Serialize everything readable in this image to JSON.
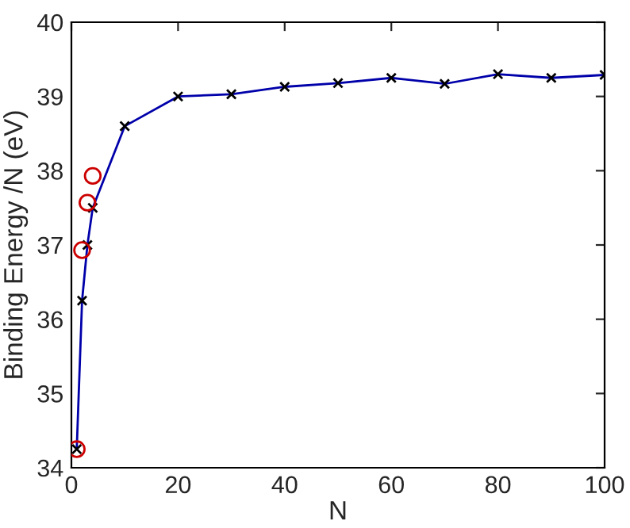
{
  "chart_data": {
    "type": "line",
    "xlabel": "N",
    "ylabel": "Binding Energy /N (eV)",
    "series": [
      {
        "color": "#0000aa",
        "marker": "cross",
        "x": [
          1,
          2,
          3,
          4,
          10,
          20,
          30,
          40,
          50,
          60,
          70,
          80,
          90,
          100
        ],
        "values": [
          34.25,
          36.25,
          37.0,
          37.5,
          38.6,
          39.0,
          39.03,
          39.13,
          39.18,
          39.25,
          39.17,
          39.3,
          39.25,
          39.29
        ]
      },
      {
        "type": "scatter",
        "color": "#cc0000",
        "marker": "circle",
        "x": [
          1,
          2,
          3,
          4
        ],
        "values": [
          34.25,
          36.93,
          37.57,
          37.93
        ]
      }
    ],
    "xlim": [
      0,
      100
    ],
    "xticks": [
      0,
      20,
      40,
      60,
      80,
      100
    ],
    "ylim": [
      34,
      40
    ],
    "yticks": [
      34,
      35,
      36,
      37,
      38,
      39,
      40
    ],
    "grid": false,
    "legend": false
  }
}
